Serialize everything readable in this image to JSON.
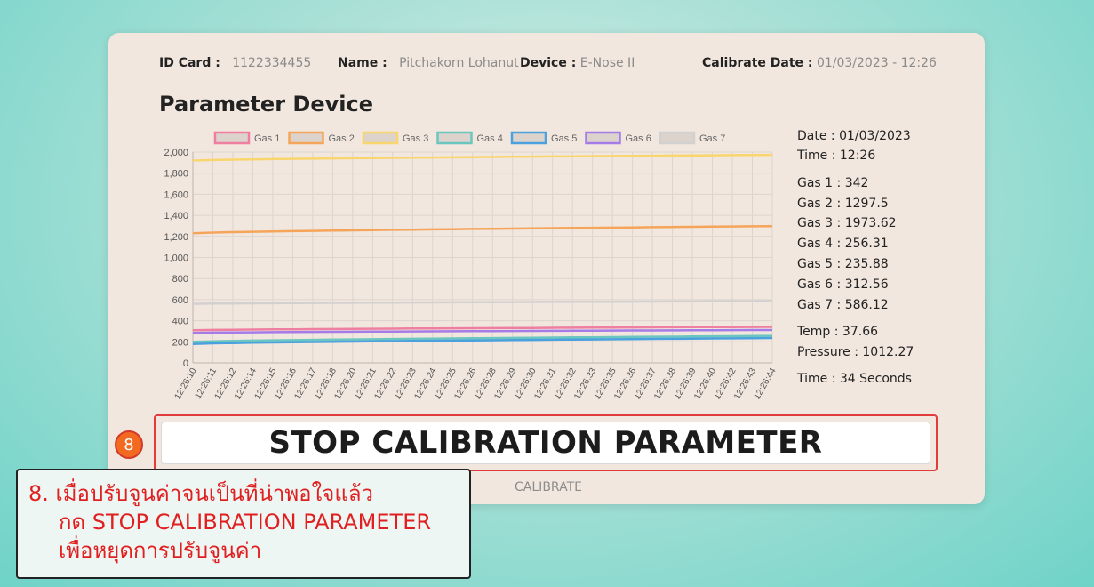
{
  "header": {
    "id_label": "ID Card :",
    "id_value": "1122334455",
    "name_label": "Name :",
    "name_value": "Pitchakorn Lohanut",
    "device_label": "Device :",
    "device_value": "E-Nose II",
    "calib_label": "Calibrate Date :",
    "calib_value": "01/03/2023 - 12:26"
  },
  "title": "Parameter Device",
  "side": {
    "date": "Date : 01/03/2023",
    "time": "Time : 12:26",
    "gas1": "Gas 1 : 342",
    "gas2": "Gas 2 : 1297.5",
    "gas3": "Gas 3 : 1973.62",
    "gas4": "Gas 4 : 256.31",
    "gas5": "Gas 5 : 235.88",
    "gas6": "Gas 6 : 312.56",
    "gas7": "Gas 7 : 586.12",
    "temp": "Temp : 37.66",
    "pressure": "Pressure : 1012.27",
    "elapsed": "Time : 34 Seconds"
  },
  "stop_button": "STOP CALIBRATION PARAMETER",
  "calibrate_label": "CALIBRATE",
  "step_badge": "8",
  "instruction": {
    "line1": "8. เมื่อปรับจูนค่าจนเป็นที่น่าพอใจแล้ว",
    "line2": "กด STOP CALIBRATION PARAMETER",
    "line3": "เพื่อหยุดการปรับจูนค่า"
  },
  "chart_data": {
    "type": "line",
    "ylim": [
      0,
      2000
    ],
    "yticks": [
      "0",
      "200",
      "400",
      "600",
      "800",
      "1,000",
      "1,200",
      "1,400",
      "1,600",
      "1,800",
      "2,000"
    ],
    "x": [
      "12:26:10",
      "12:26:11",
      "12:26:12",
      "12:26:14",
      "12:26:15",
      "12:26:16",
      "12:26:17",
      "12:26:18",
      "12:26:20",
      "12:26:21",
      "12:26:22",
      "12:26:23",
      "12:26:24",
      "12:26:25",
      "12:26:26",
      "12:26:28",
      "12:26:29",
      "12:26:30",
      "12:26:31",
      "12:26:32",
      "12:26:33",
      "12:26:35",
      "12:26:36",
      "12:26:37",
      "12:26:38",
      "12:26:39",
      "12:26:40",
      "12:26:42",
      "12:26:43",
      "12:26:44"
    ],
    "grid": true,
    "legend_position": "top",
    "series": [
      {
        "name": "Gas 1",
        "color": "#ef7fa0",
        "start": 310,
        "end": 342
      },
      {
        "name": "Gas 2",
        "color": "#f5a55a",
        "start": 1230,
        "end": 1297.5
      },
      {
        "name": "Gas 3",
        "color": "#f9d56e",
        "start": 1920,
        "end": 1973.62
      },
      {
        "name": "Gas 4",
        "color": "#6cc6c0",
        "start": 200,
        "end": 256.31
      },
      {
        "name": "Gas 5",
        "color": "#4aa1de",
        "start": 180,
        "end": 235.88
      },
      {
        "name": "Gas 6",
        "color": "#a57be8",
        "start": 285,
        "end": 312.56
      },
      {
        "name": "Gas 7",
        "color": "#d3d0d0",
        "start": 560,
        "end": 586.12
      }
    ]
  }
}
